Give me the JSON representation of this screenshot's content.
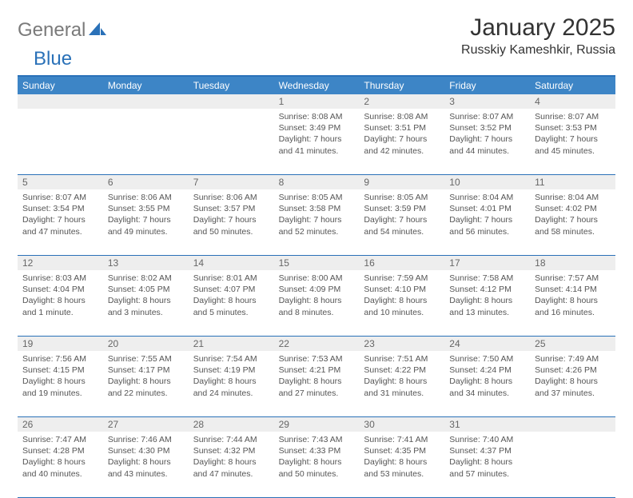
{
  "logo": {
    "text_gray": "General",
    "text_blue": "Blue"
  },
  "header": {
    "month_title": "January 2025",
    "location": "Russkiy Kameshkir, Russia"
  },
  "colors": {
    "header_bar": "#3d85c6",
    "border": "#2a71b8",
    "daynum_bg": "#eeeeee",
    "text": "#555555",
    "logo_gray": "#7a7a7a",
    "logo_blue": "#2a71b8"
  },
  "day_names": [
    "Sunday",
    "Monday",
    "Tuesday",
    "Wednesday",
    "Thursday",
    "Friday",
    "Saturday"
  ],
  "weeks": [
    [
      null,
      null,
      null,
      {
        "n": "1",
        "sr": "Sunrise: 8:08 AM",
        "ss": "Sunset: 3:49 PM",
        "d1": "Daylight: 7 hours",
        "d2": "and 41 minutes."
      },
      {
        "n": "2",
        "sr": "Sunrise: 8:08 AM",
        "ss": "Sunset: 3:51 PM",
        "d1": "Daylight: 7 hours",
        "d2": "and 42 minutes."
      },
      {
        "n": "3",
        "sr": "Sunrise: 8:07 AM",
        "ss": "Sunset: 3:52 PM",
        "d1": "Daylight: 7 hours",
        "d2": "and 44 minutes."
      },
      {
        "n": "4",
        "sr": "Sunrise: 8:07 AM",
        "ss": "Sunset: 3:53 PM",
        "d1": "Daylight: 7 hours",
        "d2": "and 45 minutes."
      }
    ],
    [
      {
        "n": "5",
        "sr": "Sunrise: 8:07 AM",
        "ss": "Sunset: 3:54 PM",
        "d1": "Daylight: 7 hours",
        "d2": "and 47 minutes."
      },
      {
        "n": "6",
        "sr": "Sunrise: 8:06 AM",
        "ss": "Sunset: 3:55 PM",
        "d1": "Daylight: 7 hours",
        "d2": "and 49 minutes."
      },
      {
        "n": "7",
        "sr": "Sunrise: 8:06 AM",
        "ss": "Sunset: 3:57 PM",
        "d1": "Daylight: 7 hours",
        "d2": "and 50 minutes."
      },
      {
        "n": "8",
        "sr": "Sunrise: 8:05 AM",
        "ss": "Sunset: 3:58 PM",
        "d1": "Daylight: 7 hours",
        "d2": "and 52 minutes."
      },
      {
        "n": "9",
        "sr": "Sunrise: 8:05 AM",
        "ss": "Sunset: 3:59 PM",
        "d1": "Daylight: 7 hours",
        "d2": "and 54 minutes."
      },
      {
        "n": "10",
        "sr": "Sunrise: 8:04 AM",
        "ss": "Sunset: 4:01 PM",
        "d1": "Daylight: 7 hours",
        "d2": "and 56 minutes."
      },
      {
        "n": "11",
        "sr": "Sunrise: 8:04 AM",
        "ss": "Sunset: 4:02 PM",
        "d1": "Daylight: 7 hours",
        "d2": "and 58 minutes."
      }
    ],
    [
      {
        "n": "12",
        "sr": "Sunrise: 8:03 AM",
        "ss": "Sunset: 4:04 PM",
        "d1": "Daylight: 8 hours",
        "d2": "and 1 minute."
      },
      {
        "n": "13",
        "sr": "Sunrise: 8:02 AM",
        "ss": "Sunset: 4:05 PM",
        "d1": "Daylight: 8 hours",
        "d2": "and 3 minutes."
      },
      {
        "n": "14",
        "sr": "Sunrise: 8:01 AM",
        "ss": "Sunset: 4:07 PM",
        "d1": "Daylight: 8 hours",
        "d2": "and 5 minutes."
      },
      {
        "n": "15",
        "sr": "Sunrise: 8:00 AM",
        "ss": "Sunset: 4:09 PM",
        "d1": "Daylight: 8 hours",
        "d2": "and 8 minutes."
      },
      {
        "n": "16",
        "sr": "Sunrise: 7:59 AM",
        "ss": "Sunset: 4:10 PM",
        "d1": "Daylight: 8 hours",
        "d2": "and 10 minutes."
      },
      {
        "n": "17",
        "sr": "Sunrise: 7:58 AM",
        "ss": "Sunset: 4:12 PM",
        "d1": "Daylight: 8 hours",
        "d2": "and 13 minutes."
      },
      {
        "n": "18",
        "sr": "Sunrise: 7:57 AM",
        "ss": "Sunset: 4:14 PM",
        "d1": "Daylight: 8 hours",
        "d2": "and 16 minutes."
      }
    ],
    [
      {
        "n": "19",
        "sr": "Sunrise: 7:56 AM",
        "ss": "Sunset: 4:15 PM",
        "d1": "Daylight: 8 hours",
        "d2": "and 19 minutes."
      },
      {
        "n": "20",
        "sr": "Sunrise: 7:55 AM",
        "ss": "Sunset: 4:17 PM",
        "d1": "Daylight: 8 hours",
        "d2": "and 22 minutes."
      },
      {
        "n": "21",
        "sr": "Sunrise: 7:54 AM",
        "ss": "Sunset: 4:19 PM",
        "d1": "Daylight: 8 hours",
        "d2": "and 24 minutes."
      },
      {
        "n": "22",
        "sr": "Sunrise: 7:53 AM",
        "ss": "Sunset: 4:21 PM",
        "d1": "Daylight: 8 hours",
        "d2": "and 27 minutes."
      },
      {
        "n": "23",
        "sr": "Sunrise: 7:51 AM",
        "ss": "Sunset: 4:22 PM",
        "d1": "Daylight: 8 hours",
        "d2": "and 31 minutes."
      },
      {
        "n": "24",
        "sr": "Sunrise: 7:50 AM",
        "ss": "Sunset: 4:24 PM",
        "d1": "Daylight: 8 hours",
        "d2": "and 34 minutes."
      },
      {
        "n": "25",
        "sr": "Sunrise: 7:49 AM",
        "ss": "Sunset: 4:26 PM",
        "d1": "Daylight: 8 hours",
        "d2": "and 37 minutes."
      }
    ],
    [
      {
        "n": "26",
        "sr": "Sunrise: 7:47 AM",
        "ss": "Sunset: 4:28 PM",
        "d1": "Daylight: 8 hours",
        "d2": "and 40 minutes."
      },
      {
        "n": "27",
        "sr": "Sunrise: 7:46 AM",
        "ss": "Sunset: 4:30 PM",
        "d1": "Daylight: 8 hours",
        "d2": "and 43 minutes."
      },
      {
        "n": "28",
        "sr": "Sunrise: 7:44 AM",
        "ss": "Sunset: 4:32 PM",
        "d1": "Daylight: 8 hours",
        "d2": "and 47 minutes."
      },
      {
        "n": "29",
        "sr": "Sunrise: 7:43 AM",
        "ss": "Sunset: 4:33 PM",
        "d1": "Daylight: 8 hours",
        "d2": "and 50 minutes."
      },
      {
        "n": "30",
        "sr": "Sunrise: 7:41 AM",
        "ss": "Sunset: 4:35 PM",
        "d1": "Daylight: 8 hours",
        "d2": "and 53 minutes."
      },
      {
        "n": "31",
        "sr": "Sunrise: 7:40 AM",
        "ss": "Sunset: 4:37 PM",
        "d1": "Daylight: 8 hours",
        "d2": "and 57 minutes."
      },
      null
    ]
  ]
}
